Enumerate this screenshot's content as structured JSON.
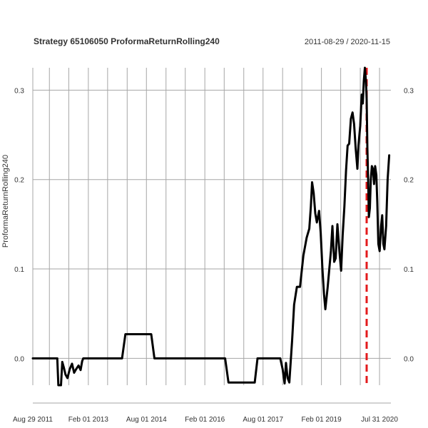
{
  "chart_data": {
    "type": "line",
    "title": "Strategy 65106050 ProformaReturnRolling240",
    "date_range": "2011-08-29 / 2020-11-15",
    "xlabel": "",
    "ylabel": "ProformaReturnRolling240",
    "ylim": [
      -0.03,
      0.325
    ],
    "xlim": [
      "2011-08-29",
      "2020-11-15"
    ],
    "x_ticks": [
      {
        "date": "2011-08-29",
        "label": "Aug 29 2011"
      },
      {
        "date": "2013-02-01",
        "label": "Feb 01 2013"
      },
      {
        "date": "2014-08-01",
        "label": "Aug 01 2014"
      },
      {
        "date": "2016-02-01",
        "label": "Feb 01 2016"
      },
      {
        "date": "2017-08-01",
        "label": "Aug 01 2017"
      },
      {
        "date": "2019-02-01",
        "label": "Feb 01 2019"
      },
      {
        "date": "2020-07-31",
        "label": "Jul 31 2020"
      }
    ],
    "y_ticks": [
      {
        "value": 0.0,
        "label": "0.0"
      },
      {
        "value": 0.1,
        "label": "0.1"
      },
      {
        "value": 0.2,
        "label": "0.2"
      },
      {
        "value": 0.3,
        "label": "0.3"
      }
    ],
    "vertical_grid_dates": [
      "2011-08-29",
      "2012-02-01",
      "2012-08-01",
      "2013-02-01",
      "2013-08-01",
      "2014-02-01",
      "2014-08-01",
      "2015-02-01",
      "2015-08-01",
      "2016-02-01",
      "2016-08-01",
      "2017-02-01",
      "2017-08-01",
      "2018-02-01",
      "2018-08-01",
      "2019-02-01",
      "2019-08-01",
      "2020-02-01",
      "2020-07-31"
    ],
    "marker_date": "2020-04-01",
    "colors": {
      "line": "#000000",
      "marker": "#e31a1c",
      "grid": "#a6a6a6"
    },
    "series": [
      {
        "name": "ProformaReturnRolling240",
        "points": [
          [
            "2011-08-29",
            0.0
          ],
          [
            "2012-04-15",
            0.0
          ],
          [
            "2012-04-25",
            -0.03
          ],
          [
            "2012-05-20",
            -0.03
          ],
          [
            "2012-06-01",
            -0.004
          ],
          [
            "2012-06-15",
            -0.01
          ],
          [
            "2012-07-01",
            -0.018
          ],
          [
            "2012-07-20",
            -0.022
          ],
          [
            "2012-08-10",
            -0.012
          ],
          [
            "2012-09-01",
            -0.006
          ],
          [
            "2012-09-20",
            -0.016
          ],
          [
            "2012-10-10",
            -0.012
          ],
          [
            "2012-11-01",
            -0.008
          ],
          [
            "2012-11-20",
            -0.013
          ],
          [
            "2012-12-05",
            -0.003
          ],
          [
            "2012-12-15",
            0.0
          ],
          [
            "2013-12-15",
            0.0
          ],
          [
            "2014-01-15",
            0.027
          ],
          [
            "2014-09-15",
            0.027
          ],
          [
            "2014-10-15",
            0.0
          ],
          [
            "2016-08-10",
            0.0
          ],
          [
            "2016-09-10",
            -0.027
          ],
          [
            "2017-05-15",
            -0.027
          ],
          [
            "2017-06-10",
            0.0
          ],
          [
            "2018-01-10",
            0.0
          ],
          [
            "2018-02-01",
            -0.012
          ],
          [
            "2018-02-20",
            -0.028
          ],
          [
            "2018-03-05",
            -0.005
          ],
          [
            "2018-03-20",
            -0.022
          ],
          [
            "2018-04-05",
            -0.027
          ],
          [
            "2018-05-01",
            0.02
          ],
          [
            "2018-05-20",
            0.06
          ],
          [
            "2018-06-15",
            0.08
          ],
          [
            "2018-07-15",
            0.08
          ],
          [
            "2018-08-15",
            0.115
          ],
          [
            "2018-09-15",
            0.135
          ],
          [
            "2018-10-10",
            0.145
          ],
          [
            "2018-10-25",
            0.17
          ],
          [
            "2018-11-05",
            0.197
          ],
          [
            "2018-11-20",
            0.185
          ],
          [
            "2018-12-05",
            0.162
          ],
          [
            "2018-12-20",
            0.152
          ],
          [
            "2019-01-10",
            0.165
          ],
          [
            "2019-01-25",
            0.14
          ],
          [
            "2019-02-10",
            0.1
          ],
          [
            "2019-02-25",
            0.072
          ],
          [
            "2019-03-10",
            0.055
          ],
          [
            "2019-04-01",
            0.08
          ],
          [
            "2019-05-01",
            0.12
          ],
          [
            "2019-05-15",
            0.148
          ],
          [
            "2019-06-01",
            0.108
          ],
          [
            "2019-06-15",
            0.112
          ],
          [
            "2019-07-01",
            0.15
          ],
          [
            "2019-07-20",
            0.12
          ],
          [
            "2019-08-05",
            0.098
          ],
          [
            "2019-08-20",
            0.138
          ],
          [
            "2019-09-05",
            0.17
          ],
          [
            "2019-09-20",
            0.21
          ],
          [
            "2019-10-05",
            0.238
          ],
          [
            "2019-10-20",
            0.24
          ],
          [
            "2019-11-05",
            0.268
          ],
          [
            "2019-11-20",
            0.275
          ],
          [
            "2019-12-05",
            0.262
          ],
          [
            "2019-12-20",
            0.235
          ],
          [
            "2020-01-05",
            0.212
          ],
          [
            "2020-01-15",
            0.238
          ],
          [
            "2020-02-01",
            0.26
          ],
          [
            "2020-02-15",
            0.295
          ],
          [
            "2020-02-25",
            0.285
          ],
          [
            "2020-03-05",
            0.31
          ],
          [
            "2020-03-15",
            0.325
          ],
          [
            "2020-03-25",
            0.31
          ],
          [
            "2020-04-01",
            0.29
          ],
          [
            "2020-04-08",
            0.235
          ],
          [
            "2020-04-15",
            0.2
          ],
          [
            "2020-04-22",
            0.158
          ],
          [
            "2020-05-01",
            0.168
          ],
          [
            "2020-05-10",
            0.2
          ],
          [
            "2020-05-20",
            0.215
          ],
          [
            "2020-05-30",
            0.212
          ],
          [
            "2020-06-10",
            0.195
          ],
          [
            "2020-06-20",
            0.215
          ],
          [
            "2020-07-01",
            0.205
          ],
          [
            "2020-07-10",
            0.175
          ],
          [
            "2020-07-20",
            0.128
          ],
          [
            "2020-08-01",
            0.12
          ],
          [
            "2020-08-15",
            0.148
          ],
          [
            "2020-08-25",
            0.16
          ],
          [
            "2020-09-05",
            0.128
          ],
          [
            "2020-09-15",
            0.122
          ],
          [
            "2020-10-01",
            0.148
          ],
          [
            "2020-10-15",
            0.2
          ],
          [
            "2020-10-30",
            0.227
          ]
        ]
      }
    ]
  }
}
